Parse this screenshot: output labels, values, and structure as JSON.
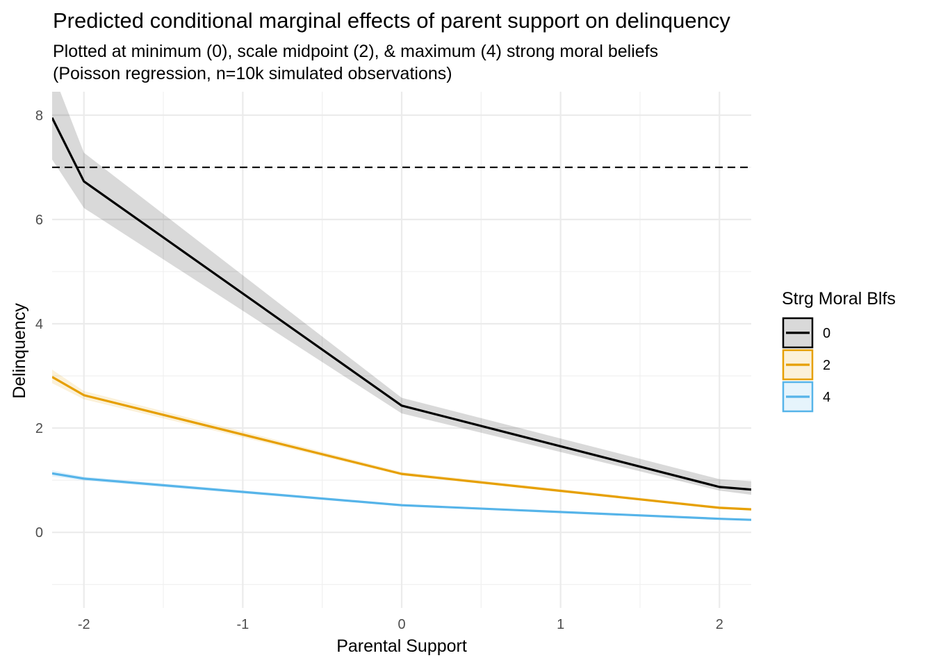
{
  "chart_data": {
    "type": "line",
    "title": "Predicted conditional marginal effects of parent support on delinquency",
    "subtitle_lines": [
      "Plotted at minimum (0), scale midpoint (2), & maximum (4) strong moral beliefs",
      "(Poisson regression, n=10k simulated observations)"
    ],
    "xlabel": "Parental Support",
    "ylabel": "Delinquency",
    "xlim": [
      -2.2,
      2.2
    ],
    "ylim": [
      -1.45,
      8.45
    ],
    "x_ticks": [
      -2,
      -1,
      0,
      1,
      2
    ],
    "x_tick_labels": [
      "-2",
      "-1",
      "0",
      "1",
      "2"
    ],
    "y_ticks": [
      0,
      2,
      4,
      6,
      8
    ],
    "y_tick_labels": [
      "0",
      "2",
      "4",
      "6",
      "8"
    ],
    "grid": true,
    "reference_line": {
      "y": 7,
      "style": "dashed",
      "color": "#000000"
    },
    "legend": {
      "title": "Strg Moral Blfs",
      "position": "right"
    },
    "x": [
      -2.2,
      -2,
      0,
      2,
      2.2
    ],
    "series": [
      {
        "name": "0",
        "color": "#000000",
        "values": [
          7.95,
          6.73,
          2.43,
          0.87,
          0.82
        ],
        "ci_lower": [
          7.15,
          6.22,
          2.28,
          0.8,
          0.72
        ],
        "ci_upper": [
          8.85,
          7.28,
          2.58,
          1.02,
          0.98
        ]
      },
      {
        "name": "2",
        "color": "#E69F00",
        "values": [
          2.98,
          2.63,
          1.12,
          0.47,
          0.44
        ],
        "ci_lower": [
          2.86,
          2.55,
          1.09,
          0.45,
          0.42
        ],
        "ci_upper": [
          3.12,
          2.71,
          1.16,
          0.5,
          0.47
        ]
      },
      {
        "name": "4",
        "color": "#56B4E9",
        "values": [
          1.13,
          1.03,
          0.52,
          0.26,
          0.24
        ],
        "ci_lower": [
          1.07,
          0.99,
          0.5,
          0.25,
          0.23
        ],
        "ci_upper": [
          1.19,
          1.07,
          0.54,
          0.28,
          0.26
        ]
      }
    ]
  }
}
